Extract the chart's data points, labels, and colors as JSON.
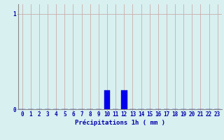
{
  "hours": [
    0,
    1,
    2,
    3,
    4,
    5,
    6,
    7,
    8,
    9,
    10,
    11,
    12,
    13,
    14,
    15,
    16,
    17,
    18,
    19,
    20,
    21,
    22,
    23
  ],
  "values": [
    0,
    0,
    0,
    0,
    0,
    0,
    0,
    0,
    0,
    0,
    0.2,
    0,
    0.2,
    0,
    0,
    0,
    0,
    0,
    0,
    0,
    0,
    0,
    0,
    0
  ],
  "bar_color": "#0000ee",
  "bar_edge_color": "#0000aa",
  "background_color": "#d8f0f0",
  "grid_color_v": "#c8a0a0",
  "grid_color_h": "#c8a0a0",
  "axis_color": "#0000aa",
  "tick_color": "#0000aa",
  "xlabel": "Précipitations 1h ( mm )",
  "xlabel_fontsize": 6.5,
  "tick_fontsize": 5.5,
  "ytick_labels": [
    "0",
    "1"
  ],
  "ytick_values": [
    0,
    1
  ],
  "ylim": [
    0,
    1.1
  ],
  "xlim": [
    -0.5,
    23.5
  ],
  "bar_width": 0.7
}
